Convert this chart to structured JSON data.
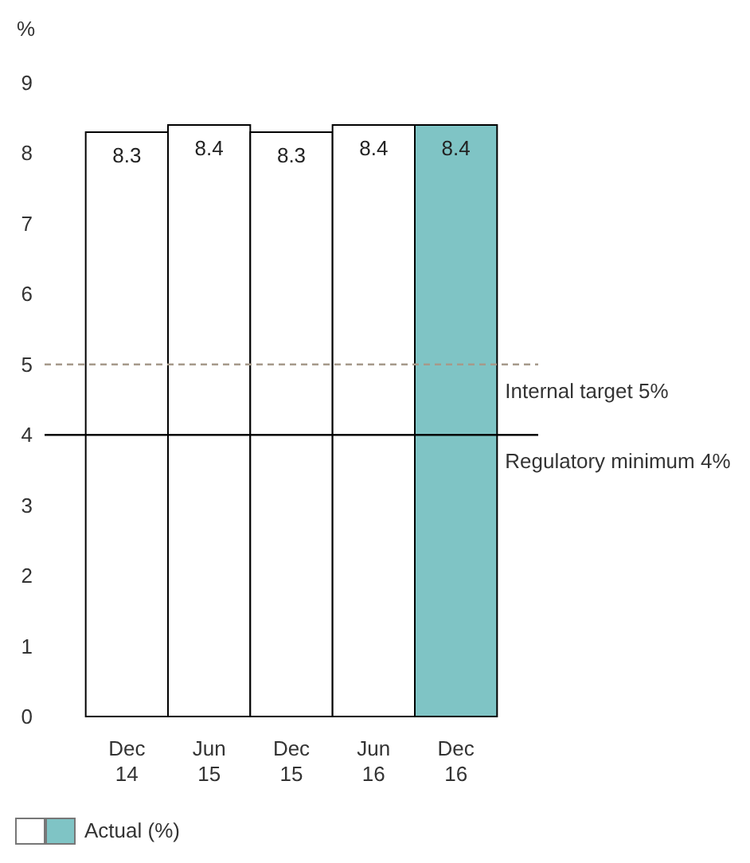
{
  "chart_data": {
    "type": "bar",
    "ylabel": "%",
    "categories": [
      "Dec 14",
      "Jun 15",
      "Dec 15",
      "Jun 16",
      "Dec 16"
    ],
    "series": [
      {
        "name": "Actual (%)",
        "values": [
          8.3,
          8.4,
          8.3,
          8.4,
          8.4
        ],
        "colors": [
          "#ffffff",
          "#ffffff",
          "#ffffff",
          "#ffffff",
          "#7fc4c5"
        ]
      }
    ],
    "ylim": [
      0,
      9
    ],
    "yticks": [
      0,
      1,
      2,
      3,
      4,
      5,
      6,
      7,
      8,
      9
    ],
    "data_labels": true,
    "ref_lines": [
      {
        "axis": "y",
        "value": 5,
        "label": "Internal target 5%",
        "color": "#a69a8b",
        "line_style": "dashed"
      },
      {
        "axis": "y",
        "value": 4,
        "label": "Regulatory minimum 4%",
        "color": "#000000",
        "line_style": "solid"
      }
    ],
    "legend": "bottom left",
    "grid": false
  }
}
